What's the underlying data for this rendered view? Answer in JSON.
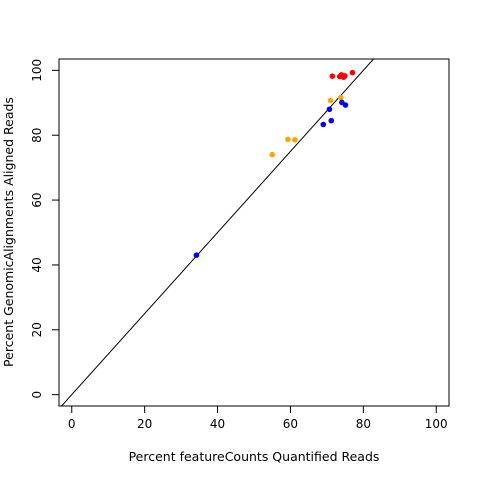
{
  "chart_data": {
    "type": "scatter",
    "title": "",
    "xlabel": "Percent featureCounts Quantified Reads",
    "ylabel": "Percent GenomicAlignments Aligned Reads",
    "xlim": [
      -3.5,
      103.5
    ],
    "ylim": [
      -3.5,
      103.5
    ],
    "x_ticks": [
      "0",
      "20",
      "40",
      "60",
      "80",
      "100"
    ],
    "y_ticks": [
      "0",
      "20",
      "40",
      "60",
      "80",
      "100"
    ],
    "x_tick_values": [
      0,
      20,
      40,
      60,
      80,
      100
    ],
    "y_tick_values": [
      0,
      20,
      40,
      60,
      80,
      100
    ],
    "reference_line": {
      "intercept": 0,
      "slope": 1.25,
      "color": "#000000"
    },
    "series": [
      {
        "color": "#ff0000",
        "points": [
          {
            "x": 71.5,
            "y": 98.2
          },
          {
            "x": 73.5,
            "y": 98.1
          },
          {
            "x": 74.0,
            "y": 98.6
          },
          {
            "x": 74.6,
            "y": 97.9
          },
          {
            "x": 74.9,
            "y": 98.3
          },
          {
            "x": 77.0,
            "y": 99.3
          }
        ]
      },
      {
        "color": "#ffa500",
        "points": [
          {
            "x": 55.0,
            "y": 74.0
          },
          {
            "x": 59.3,
            "y": 78.7
          },
          {
            "x": 61.2,
            "y": 78.6
          },
          {
            "x": 71.0,
            "y": 90.7
          },
          {
            "x": 73.8,
            "y": 91.6
          }
        ]
      },
      {
        "color": "#0000ff",
        "points": [
          {
            "x": 34.2,
            "y": 43.0
          },
          {
            "x": 69.0,
            "y": 83.3
          },
          {
            "x": 70.7,
            "y": 88.0
          },
          {
            "x": 71.2,
            "y": 84.5
          },
          {
            "x": 74.1,
            "y": 90.1
          },
          {
            "x": 75.1,
            "y": 89.3
          }
        ]
      }
    ]
  }
}
